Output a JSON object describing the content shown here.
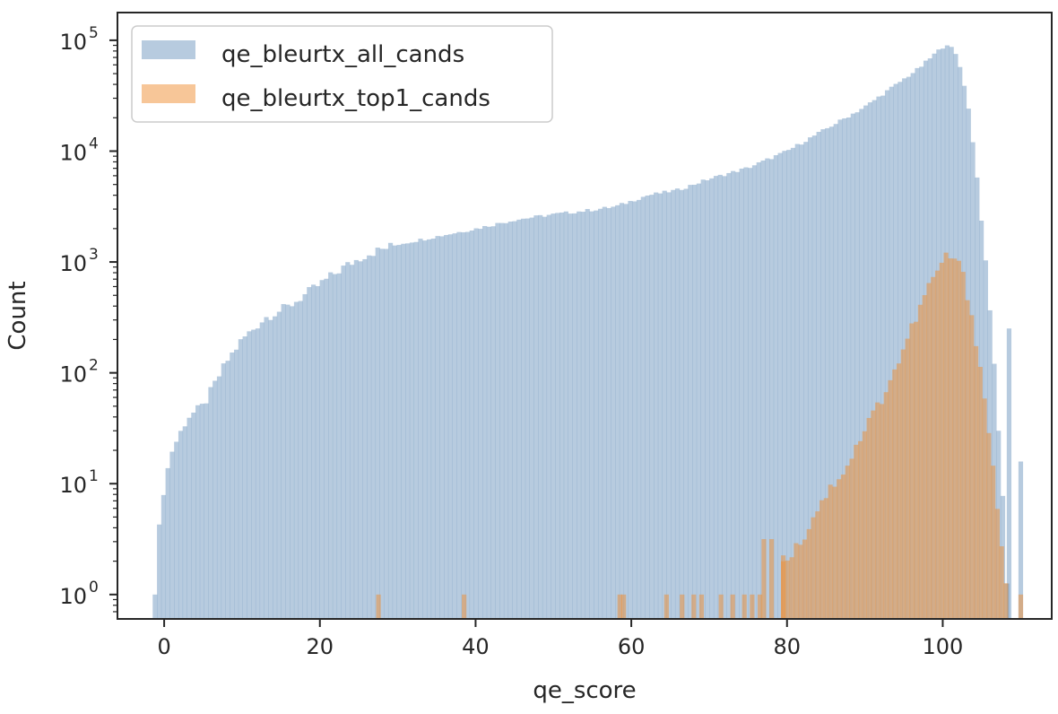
{
  "chart_data": {
    "type": "bar",
    "subtype": "histogram",
    "title": "",
    "xlabel": "qe_score",
    "ylabel": "Count",
    "xlim": [
      -6,
      114
    ],
    "ylim_log10": [
      -0.22,
      5.25
    ],
    "y_scale": "log",
    "x_ticks": [
      0,
      20,
      40,
      60,
      80,
      100
    ],
    "x_tick_labels": [
      "0",
      "20",
      "40",
      "60",
      "80",
      "100"
    ],
    "y_ticks": [
      0,
      1,
      2,
      3,
      4,
      5
    ],
    "y_tick_base": "10",
    "y_tick_exponents": [
      "0",
      "1",
      "2",
      "3",
      "4",
      "5"
    ],
    "grid": false,
    "legend_position": "top-left",
    "series": [
      {
        "name": "qe_bleurtx_all_cands",
        "color": "#6f97bf",
        "alpha": 0.5,
        "envelope_log10": [
          [
            -1.2,
            0.0
          ],
          [
            -0.8,
            0.5
          ],
          [
            0.0,
            1.0
          ],
          [
            1.0,
            1.3
          ],
          [
            3.0,
            1.6
          ],
          [
            5.0,
            1.7
          ],
          [
            8.0,
            2.1
          ],
          [
            10.0,
            2.3
          ],
          [
            13.0,
            2.5
          ],
          [
            16.0,
            2.6
          ],
          [
            20.0,
            2.8
          ],
          [
            23.0,
            2.95
          ],
          [
            26.0,
            3.07
          ],
          [
            30.0,
            3.16
          ],
          [
            35.0,
            3.23
          ],
          [
            40.0,
            3.3
          ],
          [
            45.0,
            3.38
          ],
          [
            50.0,
            3.43
          ],
          [
            55.0,
            3.47
          ],
          [
            58.0,
            3.5
          ],
          [
            62.0,
            3.6
          ],
          [
            66.0,
            3.65
          ],
          [
            70.0,
            3.75
          ],
          [
            75.0,
            3.85
          ],
          [
            80.0,
            4.0
          ],
          [
            85.0,
            4.2
          ],
          [
            90.0,
            4.4
          ],
          [
            94.0,
            4.6
          ],
          [
            97.0,
            4.75
          ],
          [
            99.0,
            4.88
          ],
          [
            100.5,
            4.97
          ],
          [
            101.5,
            4.9
          ],
          [
            102.5,
            4.7
          ],
          [
            103.5,
            4.3
          ],
          [
            104.5,
            3.7
          ],
          [
            105.5,
            3.0
          ],
          [
            106.5,
            2.2
          ],
          [
            107.3,
            1.3
          ],
          [
            108.0,
            0.6
          ],
          [
            108.3,
            0.0
          ]
        ],
        "outlier_bins": [
          [
            108.5,
            2.4
          ],
          [
            110.0,
            1.2
          ]
        ]
      },
      {
        "name": "qe_bleurtx_top1_cands",
        "color": "#ef8d32",
        "alpha": 0.5,
        "envelope_log10": [
          [
            79.5,
            0.3
          ],
          [
            82.0,
            0.5
          ],
          [
            84.0,
            0.8
          ],
          [
            86.0,
            1.0
          ],
          [
            88.0,
            1.2
          ],
          [
            90.0,
            1.5
          ],
          [
            92.0,
            1.75
          ],
          [
            94.0,
            2.05
          ],
          [
            96.0,
            2.4
          ],
          [
            98.0,
            2.75
          ],
          [
            99.5,
            2.95
          ],
          [
            100.5,
            3.05
          ],
          [
            101.5,
            3.04
          ],
          [
            102.5,
            2.9
          ],
          [
            103.5,
            2.6
          ],
          [
            104.5,
            2.2
          ],
          [
            105.5,
            1.7
          ],
          [
            106.5,
            1.1
          ],
          [
            107.5,
            0.5
          ],
          [
            108.2,
            0.0
          ]
        ],
        "sparse_bins": [
          [
            27.5,
            0
          ],
          [
            38.5,
            0
          ],
          [
            58.5,
            0
          ],
          [
            59.0,
            0
          ],
          [
            64.5,
            0
          ],
          [
            66.5,
            0
          ],
          [
            68.0,
            0
          ],
          [
            69.0,
            0
          ],
          [
            71.5,
            0
          ],
          [
            73.0,
            0
          ],
          [
            74.5,
            0
          ],
          [
            75.5,
            0
          ],
          [
            76.5,
            0
          ],
          [
            77.0,
            0.5
          ],
          [
            78.0,
            0.5
          ],
          [
            79.5,
            0.3
          ],
          [
            110.0,
            0
          ]
        ]
      }
    ]
  }
}
